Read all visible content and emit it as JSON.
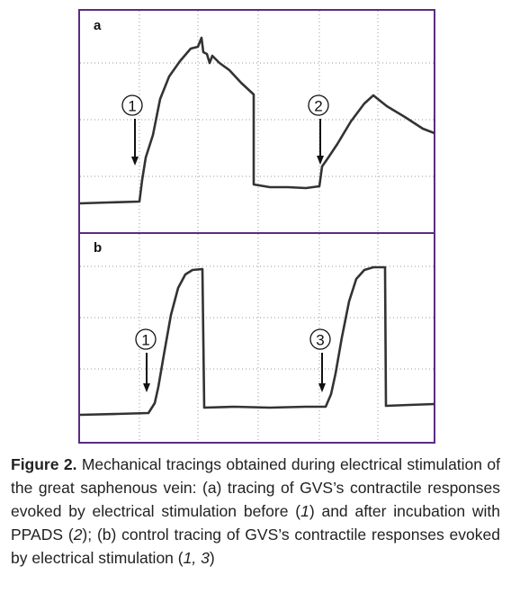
{
  "panels": [
    {
      "label": "a",
      "markers": [
        "1",
        "2"
      ]
    },
    {
      "label": "b",
      "markers": [
        "1",
        "3"
      ]
    }
  ],
  "caption": {
    "label": "Figure 2.",
    "segments": [
      "Mechanical tracings obtained during electrical stimulation of the great saphenous vein: (a) tracing of GVS’s contractile responses evoked by electrical stimulation before (",
      "1",
      ") and after incubation with PPADS (",
      "2",
      "); (b) control tracing of GVS’s contractile responses evoked by electrical stimulation (",
      "1, 3",
      ")"
    ]
  }
}
